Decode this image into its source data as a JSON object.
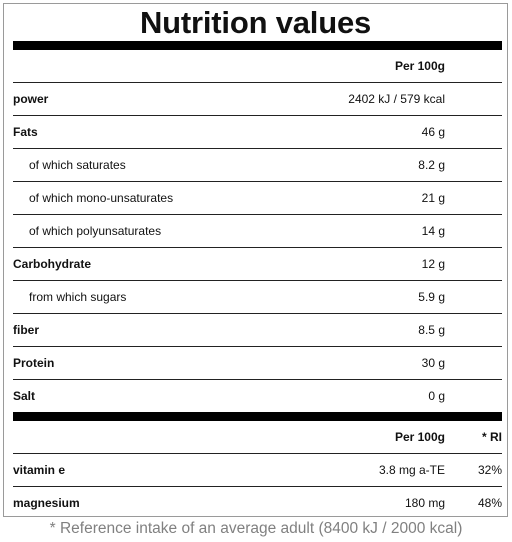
{
  "title": "Nutrition values",
  "per_header": "Per 100g",
  "ri_header": "* RI",
  "rows": [
    {
      "name": "power",
      "value": "2402 kJ / 579 kcal"
    },
    {
      "name": "Fats",
      "value": "46 g"
    },
    {
      "name": "of which saturates",
      "value": "8.2 g"
    },
    {
      "name": "of which mono-unsaturates",
      "value": "21 g"
    },
    {
      "name": "of which polyunsaturates",
      "value": "14 g"
    },
    {
      "name": "Carbohydrate",
      "value": "12 g"
    },
    {
      "name": "from which sugars",
      "value": "5.9 g"
    },
    {
      "name": "fiber",
      "value": "8.5 g"
    },
    {
      "name": "Protein",
      "value": "30 g"
    },
    {
      "name": "Salt",
      "value": "0 g"
    }
  ],
  "vitamins": [
    {
      "name": "vitamin e",
      "value": "3.8 mg a-TE",
      "ri": "32%"
    },
    {
      "name": "magnesium",
      "value": "180 mg",
      "ri": "48%"
    }
  ],
  "footnote": "* Reference intake of an average adult (8400 kJ / 2000 kcal)"
}
